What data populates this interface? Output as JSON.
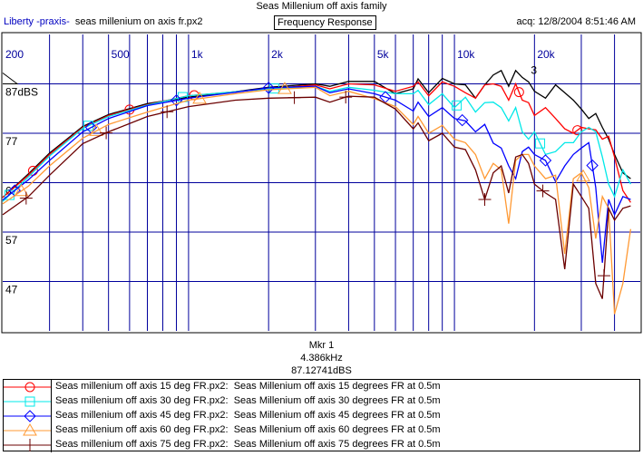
{
  "window": {
    "title": "Seas Millenium off axis family",
    "app_name": "Liberty -praxis-",
    "file_name": "seas millenium on axis fr.px2",
    "mode_label": "Frequency Response",
    "acquired": "acq: 12/8/2004 8:51:46 AM"
  },
  "marker_readout": {
    "name": "Mkr 1",
    "frequency": "4.386kHz",
    "level": "87.12741dBS"
  },
  "legend": [
    {
      "file": "Seas millenium off axis 15 deg FR.px2:",
      "desc": "Seas Millenium off axis 15 degrees FR at 0.5m"
    },
    {
      "file": "Seas millenium off axis 30 deg FR.px2:",
      "desc": "Seas Millenium off axis 30 degrees FR at 0.5m"
    },
    {
      "file": "Seas millenium off axis 45 deg FR.px2:",
      "desc": "Seas Millenium off axis 45 degrees FR at 0.5m"
    },
    {
      "file": "Seas millenium off axis 60 deg FR.px2:",
      "desc": "Seas Millenium off axis 60 degrees FR at 0.5m"
    },
    {
      "file": "Seas millenium off axis 75 deg FR.px2:",
      "desc": "Seas Millenium off axis 75 degrees FR at 0.5m"
    }
  ],
  "chart_data": {
    "type": "line",
    "title": "Seas Millenium off axis family",
    "xscale": "log",
    "xlim": [
      200,
      50000
    ],
    "ylim": [
      37,
      97
    ],
    "x_ticks": [
      {
        "v": 200,
        "label": "200"
      },
      {
        "v": 500,
        "label": "500"
      },
      {
        "v": 1000,
        "label": "1k"
      },
      {
        "v": 2000,
        "label": "2k"
      },
      {
        "v": 5000,
        "label": "5k"
      },
      {
        "v": 10000,
        "label": "10k"
      },
      {
        "v": 20000,
        "label": "20k"
      }
    ],
    "x_grid": [
      300,
      400,
      500,
      600,
      700,
      800,
      900,
      1000,
      2000,
      3000,
      4000,
      5000,
      6000,
      7000,
      8000,
      9000,
      10000,
      20000,
      30000,
      40000
    ],
    "y_ticks": [
      {
        "v": 87,
        "label": "87dBS"
      },
      {
        "v": 77,
        "label": "77"
      },
      {
        "v": 67,
        "label": "67"
      },
      {
        "v": 57,
        "label": "57"
      },
      {
        "v": 47,
        "label": "47"
      }
    ],
    "grid": true,
    "legend_position": "bottom",
    "marker_label": {
      "text": "3",
      "x": 20000,
      "y": 89
    },
    "x": [
      200,
      250,
      300,
      400,
      500,
      700,
      1000,
      1500,
      2000,
      3000,
      3400,
      4000,
      5000,
      6000,
      7000,
      7300,
      8000,
      9000,
      10000,
      11000,
      12000,
      13000,
      14000,
      15000,
      16000,
      17000,
      18000,
      19000,
      20000,
      22000,
      24000,
      26000,
      28000,
      30000,
      32000,
      34000,
      36000,
      38000,
      40000,
      43000,
      46000
    ],
    "series": [
      {
        "name": "seas millenium on axis fr.px2",
        "color": "#000000",
        "symbol": "none",
        "marker_x": [],
        "values": [
          64,
          68.8,
          73,
          78.4,
          80.8,
          83,
          84.3,
          85.4,
          86.3,
          87,
          86.5,
          87.5,
          87.5,
          85,
          86,
          88,
          85.2,
          88.1,
          87,
          86.8,
          84.1,
          86.8,
          88.8,
          89.7,
          86.5,
          89.7,
          88.3,
          87.4,
          85.5,
          84.1,
          86.8,
          85.2,
          83.7,
          81.9,
          80,
          81,
          78.2,
          75.8,
          72.7,
          69,
          67.8
        ]
      },
      {
        "name": "Seas millenium off axis 15 deg",
        "color": "#ff0000",
        "symbol": "circle",
        "marker_x": [
          260,
          600,
          1050,
          17500,
          29000
        ],
        "values": [
          64,
          68.5,
          72.7,
          78.2,
          80.6,
          82.8,
          84.6,
          85.4,
          86,
          86.8,
          86,
          87,
          86.8,
          85.5,
          86.5,
          87.4,
          84.6,
          87.4,
          86.5,
          85.2,
          84.1,
          86.8,
          87,
          86.5,
          83.7,
          87,
          83.7,
          83.2,
          80.6,
          82.2,
          80,
          77.9,
          77,
          78.2,
          77.9,
          77.7,
          75.8,
          76.4,
          72.2,
          65.4,
          63
        ]
      },
      {
        "name": "Seas millenium off axis 30 deg",
        "color": "#00e8e8",
        "symbol": "square",
        "marker_x": [
          212,
          420,
          950,
          2100,
          10200,
          21000
        ],
        "values": [
          63.2,
          68.2,
          72.4,
          78,
          80.4,
          82.7,
          84.6,
          85.4,
          86,
          86.5,
          85.5,
          86.3,
          85.7,
          85,
          85,
          85.7,
          82.8,
          85,
          82.2,
          84.3,
          81.3,
          83.2,
          83.3,
          82.2,
          79.5,
          82.2,
          77.3,
          75.8,
          77.3,
          72.7,
          73.3,
          75.1,
          75.1,
          77.3,
          78.2,
          77.3,
          72.2,
          66.7,
          64.2,
          69.6,
          66.7
        ]
      },
      {
        "name": "Seas millenium off axis 45 deg",
        "color": "#0000ff",
        "symbol": "diamond",
        "marker_x": [
          222,
          430,
          900,
          2000,
          5500,
          10700,
          22000,
          33000
        ],
        "values": [
          63.5,
          67.6,
          71.5,
          77.3,
          80,
          82.6,
          84.1,
          85.3,
          86.2,
          86.5,
          85.2,
          86,
          85,
          83.7,
          81.5,
          83.3,
          80.4,
          82.2,
          80,
          79.5,
          77.3,
          78.8,
          75,
          74,
          70.4,
          67.8,
          73.3,
          74.2,
          72.7,
          71.5,
          67.2,
          70.4,
          72.7,
          74,
          75.1,
          66,
          50.8,
          63.6,
          60.5,
          64.2,
          63.6
        ]
      },
      {
        "name": "Seas millenium off axis 60 deg",
        "color": "#ff9933",
        "symbol": "triangle",
        "marker_x": [
          235,
          450,
          1100,
          2300,
          30500
        ],
        "values": [
          62.7,
          66.3,
          70.4,
          76,
          78.8,
          81.3,
          83.7,
          85,
          85.8,
          86.3,
          84.6,
          85.5,
          84,
          82.4,
          78.8,
          80.4,
          77,
          78.6,
          75.8,
          75.1,
          72.7,
          67.8,
          70.9,
          69.6,
          58.7,
          71.5,
          72.7,
          72.7,
          70.4,
          67.8,
          68.5,
          52.6,
          67.8,
          69,
          66,
          55.7,
          64.2,
          61.8,
          40.4,
          46.6,
          57.6
        ]
      },
      {
        "name": "Seas millenium off axis 75 deg",
        "color": "#6b0000",
        "symbol": "plus",
        "marker_x": [
          245,
          490,
          830,
          2500,
          3900,
          13000,
          21500,
          36500
        ],
        "values": [
          60.5,
          64.2,
          68.5,
          74.9,
          77.3,
          80.4,
          82.4,
          83.7,
          84.1,
          84.3,
          83.3,
          84.5,
          84.3,
          81.9,
          77.9,
          79.1,
          75.5,
          77,
          74.2,
          73.7,
          69.6,
          63.6,
          69,
          70.4,
          64.9,
          72.2,
          72.7,
          70.9,
          66.7,
          64.9,
          63.6,
          49.5,
          66.7,
          64.2,
          61.8,
          46.6,
          43.5,
          61.8,
          59.4,
          61.8,
          62.3
        ]
      }
    ]
  }
}
